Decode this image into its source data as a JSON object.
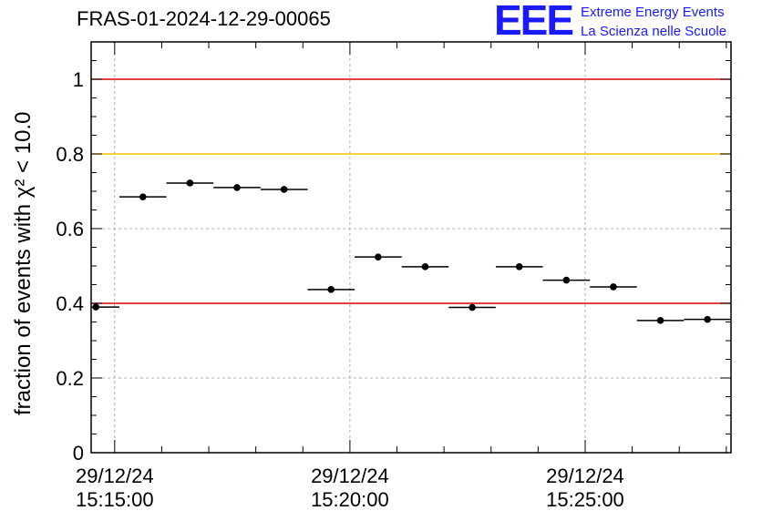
{
  "header": {
    "title": "FRAS-01-2024-12-29-00065"
  },
  "logo": {
    "mark": "EEE",
    "line1": "Extreme Energy Events",
    "line2": "La Scienza nelle Scuole",
    "color": "#1a1aff"
  },
  "chart_data": {
    "type": "scatter",
    "title": "FRAS-01-2024-12-29-00065",
    "ylabel": "fraction of events with χ² < 10.0",
    "xlabel": "",
    "ylim": [
      0,
      1.1
    ],
    "yticks": [
      0,
      0.2,
      0.4,
      0.6,
      0.8,
      1
    ],
    "ytick_labels": [
      "0",
      "0.2",
      "0.4",
      "0.6",
      "0.8",
      "1"
    ],
    "x_unit": "minutes",
    "xlim_minutes": [
      -0.5,
      13.1
    ],
    "xticks_minutes": [
      0,
      5,
      10
    ],
    "xtick_labels": [
      [
        "29/12/24",
        "15:15:00"
      ],
      [
        "29/12/24",
        "15:20:00"
      ],
      [
        "29/12/24",
        "15:25:00"
      ]
    ],
    "grid": true,
    "reference_lines": [
      {
        "y": 1.0,
        "color": "#e00000"
      },
      {
        "y": 0.8,
        "color": "#ffc000"
      },
      {
        "y": 0.4,
        "color": "#e00000"
      }
    ],
    "points": [
      {
        "x": -0.4,
        "y": 0.39,
        "x_err": 0.5
      },
      {
        "x": 0.6,
        "y": 0.685,
        "x_err": 0.5
      },
      {
        "x": 1.6,
        "y": 0.722,
        "x_err": 0.5
      },
      {
        "x": 2.6,
        "y": 0.71,
        "x_err": 0.5
      },
      {
        "x": 3.6,
        "y": 0.705,
        "x_err": 0.5
      },
      {
        "x": 4.6,
        "y": 0.437,
        "x_err": 0.5
      },
      {
        "x": 5.6,
        "y": 0.524,
        "x_err": 0.5
      },
      {
        "x": 6.6,
        "y": 0.498,
        "x_err": 0.5
      },
      {
        "x": 7.6,
        "y": 0.389,
        "x_err": 0.5
      },
      {
        "x": 8.6,
        "y": 0.498,
        "x_err": 0.5
      },
      {
        "x": 9.6,
        "y": 0.462,
        "x_err": 0.5
      },
      {
        "x": 10.6,
        "y": 0.444,
        "x_err": 0.5
      },
      {
        "x": 11.6,
        "y": 0.354,
        "x_err": 0.5
      },
      {
        "x": 12.6,
        "y": 0.357,
        "x_err": 0.5
      }
    ],
    "marker_color": "#000000"
  }
}
